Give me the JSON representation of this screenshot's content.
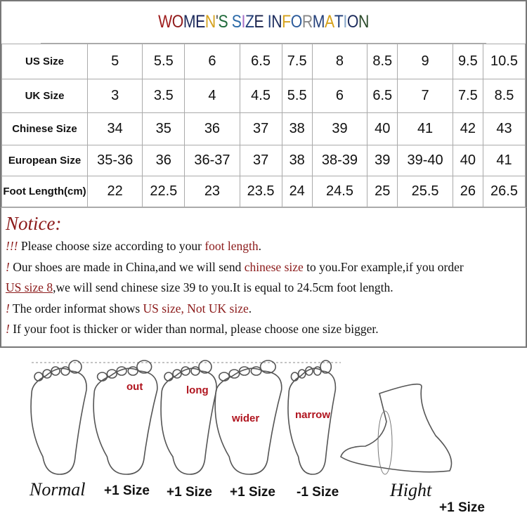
{
  "title": {
    "letters": [
      "W",
      "O",
      "M",
      "E",
      "N",
      "'",
      "S",
      " ",
      "S",
      "I",
      "Z",
      "E",
      " ",
      "I",
      "N",
      "F",
      "O",
      "R",
      "M",
      "A",
      "T",
      "I",
      "O",
      "N"
    ],
    "colors": [
      "#9e1b1b",
      "#8e1a1a",
      "#1c2b5c",
      "#162056",
      "#d6a21c",
      "#555",
      "#1f6a3a",
      "#fff",
      "#2b6aa8",
      "#a56dc6",
      "#24407a",
      "#18204a",
      "#fff",
      "#1d3b78",
      "#1c2b5c",
      "#d6a21c",
      "#2b5a9a",
      "#888",
      "#24407a",
      "#d6a21c",
      "#1d3b78",
      "#86a6c8",
      "#1c2b5c",
      "#2b4a2a"
    ]
  },
  "table": {
    "rows": [
      {
        "label": "US Size",
        "values": [
          "5",
          "5.5",
          "6",
          "6.5",
          "7.5",
          "8",
          "8.5",
          "9",
          "9.5",
          "10.5"
        ]
      },
      {
        "label": "UK Size",
        "values": [
          "3",
          "3.5",
          "4",
          "4.5",
          "5.5",
          "6",
          "6.5",
          "7",
          "7.5",
          "8.5"
        ]
      },
      {
        "label": "Chinese Size",
        "values": [
          "34",
          "35",
          "36",
          "37",
          "38",
          "39",
          "40",
          "41",
          "42",
          "43"
        ]
      },
      {
        "label": "European Size",
        "values": [
          "35-36",
          "36",
          "36-37",
          "37",
          "38",
          "38-39",
          "39",
          "39-40",
          "40",
          "41"
        ]
      },
      {
        "label": "Foot Length(cm)",
        "values": [
          "22",
          "22.5",
          "23",
          "23.5",
          "24",
          "24.5",
          "25",
          "25.5",
          "26",
          "26.5"
        ]
      }
    ]
  },
  "notice": {
    "heading": "Notice:",
    "l1": {
      "mark": "!!!",
      "a": " Please choose size according to your ",
      "b": "foot length",
      "c": "."
    },
    "l2": {
      "mark": "!",
      "a": " Our shoes are made in China,and we will send ",
      "b": "chinese size",
      "c": " to you.For example,if you order"
    },
    "l3": {
      "a": "US size 8",
      "b": ",we will send chinese size 39 to you.It is equal to 24.5cm foot length."
    },
    "l4": {
      "mark": "!",
      "a": " The order informat shows ",
      "b": "US size, Not UK size",
      "c": "."
    },
    "l5": {
      "mark": "!",
      "a": " If your foot is thicker or wider than normal, please choose one size bigger."
    }
  },
  "feet": {
    "labels": [
      "out",
      "long",
      "wider",
      "narrow"
    ],
    "captions": [
      "Normal",
      "+1 Size",
      "+1 Size",
      "+1 Size",
      "-1 Size",
      "Hight",
      "+1 Size"
    ]
  }
}
